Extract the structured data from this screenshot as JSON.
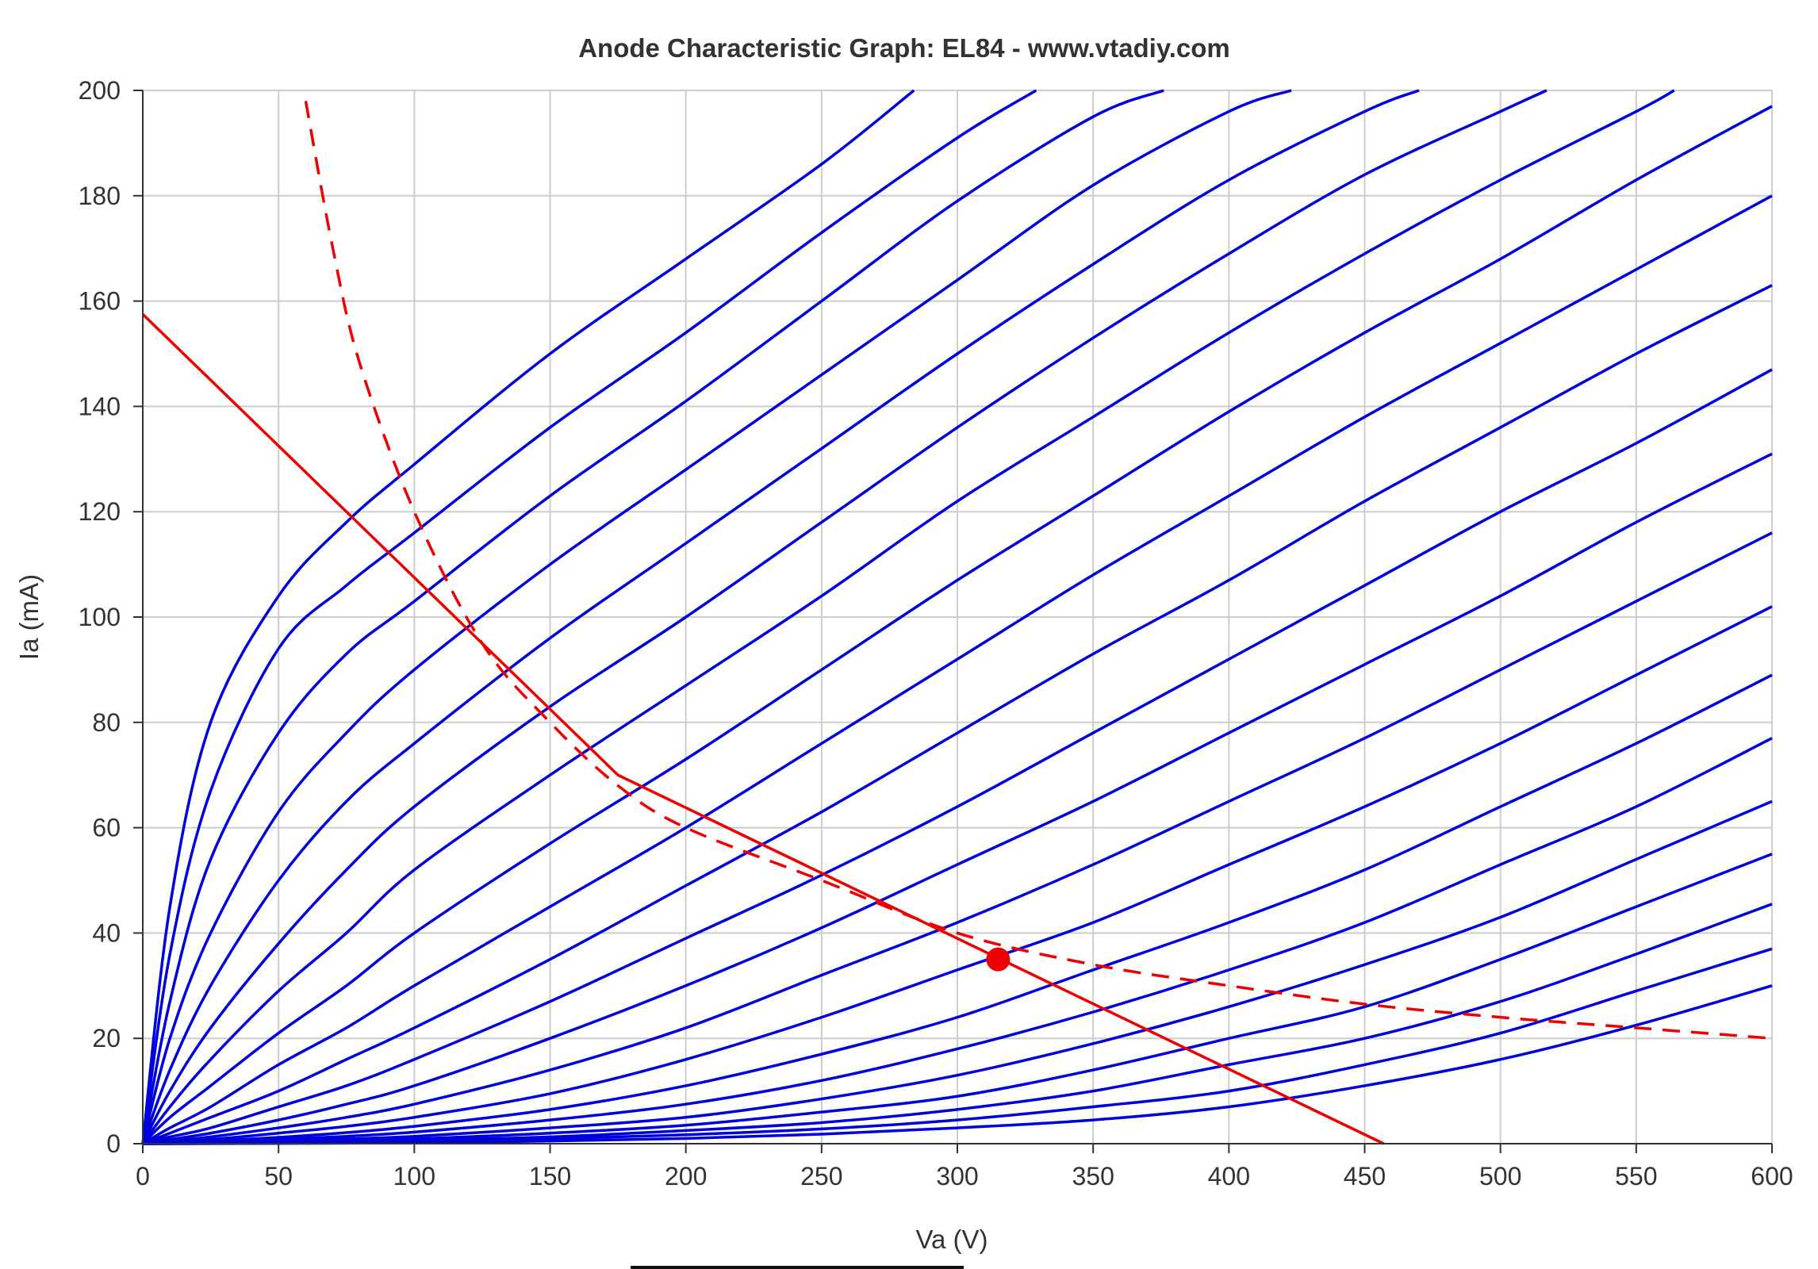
{
  "chart_data": {
    "type": "line",
    "title": "Anode Characteristic Graph: EL84 - www.vtadiy.com",
    "xlabel": "Va (V)",
    "ylabel": "Ia (mA)",
    "xlim": [
      0,
      600
    ],
    "ylim": [
      0,
      200
    ],
    "xticks": [
      0,
      50,
      100,
      150,
      200,
      250,
      300,
      350,
      400,
      450,
      500,
      550,
      600
    ],
    "yticks": [
      0,
      20,
      40,
      60,
      80,
      100,
      120,
      140,
      160,
      180,
      200
    ],
    "grid": true,
    "colors": {
      "curves": "#0000dd",
      "load": "#ee0000",
      "grid": "#cccccc",
      "axis": "#333333"
    },
    "curves": [
      {
        "x": [
          0,
          10,
          25,
          50,
          75,
          100,
          150,
          200,
          250,
          284
        ],
        "y": [
          0,
          45,
          80,
          104,
          118,
          129,
          150,
          168,
          186,
          200
        ]
      },
      {
        "x": [
          0,
          10,
          25,
          50,
          75,
          100,
          150,
          200,
          250,
          300,
          329
        ],
        "y": [
          0,
          36,
          67,
          94,
          106,
          116,
          136,
          154,
          173,
          191,
          200
        ]
      },
      {
        "x": [
          0,
          10,
          25,
          50,
          75,
          100,
          150,
          200,
          250,
          300,
          350,
          376
        ],
        "y": [
          0,
          27,
          54,
          78,
          93,
          103,
          123,
          141,
          160,
          179,
          195,
          200
        ]
      },
      {
        "x": [
          0,
          10,
          25,
          50,
          75,
          100,
          150,
          200,
          250,
          300,
          350,
          400,
          423
        ],
        "y": [
          0,
          20,
          40,
          63,
          78,
          90,
          110,
          128,
          146,
          164,
          182,
          196,
          200
        ]
      },
      {
        "x": [
          0,
          10,
          25,
          50,
          75,
          100,
          150,
          200,
          250,
          300,
          350,
          400,
          450,
          470
        ],
        "y": [
          0,
          14,
          30,
          50,
          65,
          76,
          96,
          114,
          132,
          150,
          167,
          183,
          196,
          200
        ]
      },
      {
        "x": [
          0,
          10,
          25,
          50,
          75,
          100,
          150,
          200,
          250,
          300,
          350,
          400,
          450,
          500,
          517
        ],
        "y": [
          0,
          10,
          22,
          38,
          52,
          64,
          83,
          100,
          118,
          136,
          153,
          169,
          184,
          196,
          200
        ]
      },
      {
        "x": [
          0,
          10,
          25,
          50,
          75,
          100,
          150,
          200,
          250,
          300,
          350,
          400,
          450,
          500,
          550,
          564
        ],
        "y": [
          0,
          7,
          16,
          29,
          40,
          52,
          70,
          87,
          104,
          122,
          138,
          154,
          169,
          183,
          196,
          200
        ]
      },
      {
        "x": [
          0,
          10,
          25,
          50,
          75,
          100,
          150,
          200,
          250,
          300,
          350,
          400,
          450,
          500,
          550,
          600
        ],
        "y": [
          0,
          5,
          11,
          21,
          30,
          40,
          57,
          73,
          90,
          107,
          123,
          139,
          154,
          168,
          183,
          197
        ]
      },
      {
        "x": [
          0,
          10,
          25,
          50,
          75,
          100,
          150,
          200,
          250,
          300,
          350,
          400,
          450,
          500,
          550,
          600
        ],
        "y": [
          0,
          3,
          7,
          15,
          22,
          30,
          45,
          60,
          76,
          92,
          108,
          123,
          138,
          152,
          166,
          180
        ]
      },
      {
        "x": [
          0,
          10,
          25,
          50,
          75,
          100,
          150,
          200,
          250,
          300,
          350,
          400,
          450,
          500,
          550,
          600
        ],
        "y": [
          0,
          2,
          5,
          10,
          16,
          22,
          35,
          49,
          63,
          78,
          93,
          107,
          122,
          136,
          150,
          163
        ]
      },
      {
        "x": [
          0,
          10,
          25,
          50,
          75,
          100,
          150,
          200,
          250,
          300,
          350,
          400,
          450,
          500,
          550,
          600
        ],
        "y": [
          0,
          1.3,
          3,
          7,
          11,
          16,
          27,
          39,
          51,
          64,
          78,
          92,
          106,
          120,
          133,
          147
        ]
      },
      {
        "x": [
          0,
          10,
          25,
          50,
          75,
          100,
          150,
          200,
          250,
          300,
          350,
          400,
          450,
          500,
          550,
          600
        ],
        "y": [
          0,
          0.8,
          2,
          4.5,
          7.5,
          11,
          20,
          30,
          41,
          53,
          65,
          78,
          91,
          104,
          118,
          131
        ]
      },
      {
        "x": [
          0,
          10,
          25,
          50,
          75,
          100,
          150,
          200,
          250,
          300,
          350,
          400,
          450,
          500,
          550,
          600
        ],
        "y": [
          0,
          0.5,
          1.3,
          3,
          5,
          7.5,
          14,
          22,
          32,
          42,
          53,
          65,
          77,
          90,
          103,
          116
        ]
      },
      {
        "x": [
          0,
          10,
          25,
          50,
          75,
          100,
          150,
          200,
          250,
          300,
          350,
          400,
          450,
          500,
          550,
          600
        ],
        "y": [
          0,
          0.3,
          0.8,
          2,
          3.3,
          5,
          9.5,
          16,
          24,
          33,
          42,
          53,
          64,
          76,
          89,
          102
        ]
      },
      {
        "x": [
          0,
          10,
          25,
          50,
          75,
          100,
          150,
          200,
          250,
          300,
          350,
          400,
          450,
          500,
          550,
          600
        ],
        "y": [
          0,
          0.2,
          0.5,
          1.2,
          2.1,
          3.3,
          6.5,
          11,
          17,
          24,
          33,
          42,
          52,
          64,
          76,
          89
        ]
      },
      {
        "x": [
          0,
          10,
          25,
          50,
          75,
          100,
          150,
          200,
          250,
          300,
          350,
          400,
          450,
          500,
          550,
          600
        ],
        "y": [
          0,
          0.1,
          0.3,
          0.8,
          1.4,
          2.2,
          4.5,
          7.5,
          12,
          18,
          25,
          33,
          42,
          53,
          64,
          77
        ]
      },
      {
        "x": [
          0,
          10,
          25,
          50,
          75,
          100,
          150,
          200,
          250,
          300,
          350,
          400,
          450,
          500,
          550,
          600
        ],
        "y": [
          0,
          0.05,
          0.2,
          0.5,
          0.9,
          1.4,
          3,
          5,
          8.5,
          13,
          19,
          26,
          34,
          43,
          54,
          65
        ]
      },
      {
        "x": [
          0,
          10,
          25,
          50,
          75,
          100,
          150,
          200,
          250,
          300,
          350,
          400,
          450,
          500,
          550,
          600
        ],
        "y": [
          0,
          0.03,
          0.1,
          0.3,
          0.6,
          0.9,
          2,
          3.5,
          6,
          9,
          14,
          20,
          26,
          35,
          45,
          55
        ]
      },
      {
        "x": [
          0,
          10,
          25,
          50,
          75,
          100,
          150,
          200,
          250,
          300,
          350,
          400,
          450,
          500,
          550,
          600
        ],
        "y": [
          0,
          0.02,
          0.05,
          0.2,
          0.4,
          0.6,
          1.3,
          2.5,
          4,
          6.5,
          10,
          15,
          20,
          27,
          36,
          45.5
        ]
      },
      {
        "x": [
          0,
          10,
          25,
          50,
          75,
          100,
          150,
          200,
          250,
          300,
          350,
          400,
          450,
          500,
          550,
          600
        ],
        "y": [
          0,
          0.01,
          0.03,
          0.1,
          0.2,
          0.4,
          0.9,
          1.7,
          2.8,
          4.5,
          7,
          10,
          15,
          21,
          29,
          37
        ]
      },
      {
        "x": [
          0,
          10,
          25,
          50,
          75,
          100,
          150,
          200,
          250,
          300,
          350,
          400,
          450,
          500,
          550,
          600
        ],
        "y": [
          0,
          0.005,
          0.02,
          0.05,
          0.1,
          0.2,
          0.5,
          1,
          1.8,
          3,
          4.5,
          7,
          11,
          16,
          22.5,
          30
        ]
      }
    ],
    "load_line": {
      "x": [
        0,
        175,
        457
      ],
      "y": [
        157.5,
        70,
        0
      ]
    },
    "power_limit": {
      "style": "dashed",
      "x": [
        60,
        70,
        80,
        100,
        125,
        150,
        175,
        200,
        250,
        300,
        350,
        400,
        450,
        500,
        550,
        600
      ],
      "y": [
        198,
        170,
        148,
        120,
        95,
        80,
        68,
        60,
        50,
        40,
        34,
        30,
        26.5,
        24,
        22,
        20
      ]
    },
    "operating_point": {
      "x": 315,
      "y": 35
    }
  }
}
